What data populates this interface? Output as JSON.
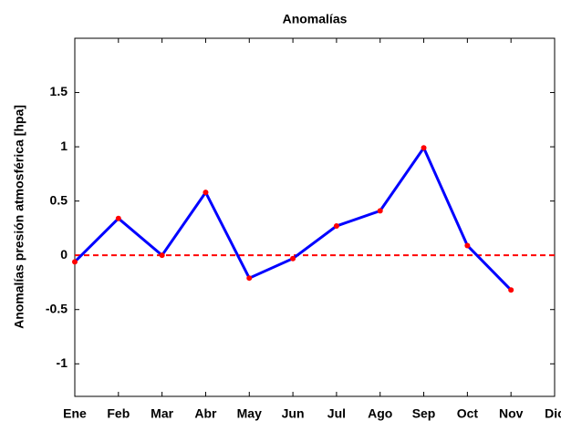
{
  "chart_data": {
    "type": "line",
    "title": "Anomalías",
    "ylabel": "Anomalías presión atmosférica [hpa]",
    "categories": [
      "Ene",
      "Feb",
      "Mar",
      "Abr",
      "May",
      "Jun",
      "Jul",
      "Ago",
      "Sep",
      "Oct",
      "Nov",
      "Dic"
    ],
    "series": [
      {
        "name": "Anomalías",
        "color": "#0000ff",
        "marker_color": "#ff0000",
        "values": [
          -0.06,
          0.34,
          0.0,
          0.58,
          -0.21,
          -0.03,
          0.27,
          0.41,
          0.99,
          0.09,
          -0.32,
          null
        ]
      }
    ],
    "reference_line": {
      "value": 0,
      "color": "#ff0000"
    },
    "ylim": [
      -1.3,
      2
    ],
    "yticks": [
      -1,
      -0.5,
      0,
      0.5,
      1,
      1.5
    ],
    "grid": false
  }
}
